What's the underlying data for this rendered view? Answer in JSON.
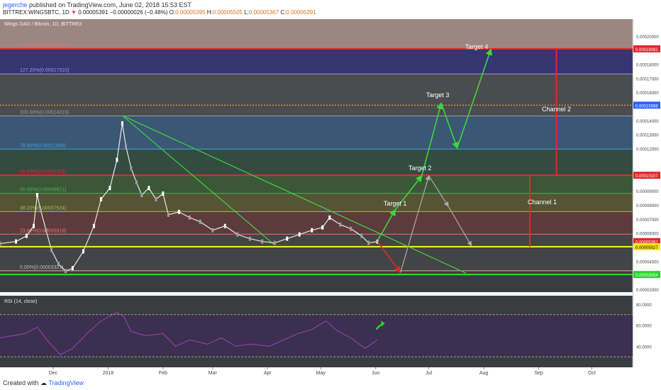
{
  "header": {
    "author": "jegerche",
    "published": "published on TradingView.com, June 02, 2018 15:53 EST",
    "symbol_line": "BITTREX:WINGSBTC, 1D",
    "last": "0.00005391",
    "change": "−0.00000026 (−0.48%)",
    "ohlc": [
      {
        "label": "O:",
        "value": "0.00005395"
      },
      {
        "label": "H:",
        "value": "0.00005505"
      },
      {
        "label": "L:",
        "value": "0.00005367"
      },
      {
        "label": "C:",
        "value": "0.00005391"
      }
    ]
  },
  "footer": {
    "created_with": "Created with",
    "brand": "TradingView"
  },
  "chart_data": {
    "type": "line",
    "title": "Wings DAO / Bitcoin, 1D, BITTREX",
    "price_axis": {
      "ylim": [
        1.8e-05,
        0.000212
      ],
      "ticks": [
        "0.00020000",
        "0.00018000",
        "0.00017000",
        "0.00016000",
        "0.00014000",
        "0.00013000",
        "0.00012000",
        "0.00009000",
        "0.00008000",
        "0.00007000",
        "0.00006000",
        "0.00004000",
        "0.00002000"
      ],
      "tick_values": [
        0.0002,
        0.00018,
        0.00017,
        0.00016,
        0.00014,
        0.00013,
        0.00012,
        9e-05,
        8e-05,
        7e-05,
        6e-05,
        4e-05,
        2e-05
      ]
    },
    "price_labels": [
      {
        "text": "0.00019091",
        "value": 0.00019091,
        "color": "#e3262c"
      },
      {
        "text": "0.00015088",
        "value": 0.00015088,
        "color": "#2962ff"
      },
      {
        "text": "0.00010107",
        "value": 0.00010107,
        "color": "#e3262c"
      },
      {
        "text": "0.00005391",
        "value": 5.391e-05,
        "color": "#e3262c"
      },
      {
        "text": "0.00005027",
        "value": 5.027e-05,
        "color": "#f7e71c"
      },
      {
        "text": "0.00003054",
        "value": 3.054e-05,
        "color": "#2ed12e"
      }
    ],
    "fib_levels": [
      {
        "label": "141.40%(0.00019091)",
        "value": 0.00019091,
        "color": "#e57373",
        "fill": "#efc3b8"
      },
      {
        "label": "127.20%(0.00017310)",
        "value": 0.0001731,
        "color": "#9a9ad8",
        "fill": "#2f2f9a"
      },
      {
        "label": "100.00%(0.00014319)",
        "value": 0.00014319,
        "color": "#9e9e9e",
        "fill": "#5a5a5a"
      },
      {
        "label": "78.60%(0.00011966)",
        "value": 0.00011966,
        "color": "#4aa0d8",
        "fill": "#3b6ea0"
      },
      {
        "label": "61.80%(0.00010119)",
        "value": 0.00010119,
        "color": "#e3262c",
        "fill": "#2e5a45"
      },
      {
        "label": "50.00%(0.00008821)",
        "value": 8.821e-05,
        "color": "#4caf50",
        "fill": "#3d6e33"
      },
      {
        "label": "38.20%(0.00007524)",
        "value": 7.524e-05,
        "color": "#a0c040",
        "fill": "#6c6a30"
      },
      {
        "label": "23.60%(0.00005918)",
        "value": 5.918e-05,
        "color": "#e57373",
        "fill": "#7a3a3a"
      },
      {
        "label": "0.00%(0.00003321)",
        "value": 3.321e-05,
        "color": "#bdbdbd",
        "fill": "#4a4a4a"
      }
    ],
    "horizontal_lines": [
      {
        "value": 0.00019091,
        "color": "#e3262c"
      },
      {
        "value": 0.00015088,
        "color": "#ffb74d"
      },
      {
        "value": 0.00010107,
        "color": "#e3262c"
      },
      {
        "value": 5.027e-05,
        "color": "#f7e71c"
      },
      {
        "value": 3.054e-05,
        "color": "#2ed12e"
      }
    ],
    "x_axis": {
      "ticks": [
        {
          "label": "Dec",
          "x": "2017-12-01"
        },
        {
          "label": "2018",
          "x": "2018-01-01"
        },
        {
          "label": "Feb",
          "x": "2018-02-01"
        },
        {
          "label": "Mar",
          "x": "2018-03-01"
        },
        {
          "label": "Apr",
          "x": "2018-04-01"
        },
        {
          "label": "May",
          "x": "2018-05-01"
        },
        {
          "label": "Jun",
          "x": "2018-06-01"
        },
        {
          "label": "Jul",
          "x": "2018-07-01"
        },
        {
          "label": "Aug",
          "x": "2018-08-01"
        },
        {
          "label": "Sep",
          "x": "2018-09-01"
        },
        {
          "label": "Oct",
          "x": "2018-10-01"
        }
      ],
      "xlim": [
        "2017-11-01",
        "2018-10-24"
      ]
    },
    "series": [
      {
        "color": "#ffffff",
        "points": [
          [
            "2017-11-01",
            5.25e-05
          ],
          [
            "2017-11-10",
            5.4e-05
          ],
          [
            "2017-11-16",
            5.8e-05
          ],
          [
            "2017-11-20",
            6.5e-05
          ],
          [
            "2017-11-22",
            8.7e-05
          ],
          [
            "2017-11-24",
            7.6e-05
          ],
          [
            "2017-11-27",
            6.2e-05
          ],
          [
            "2017-11-30",
            4.8e-05
          ],
          [
            "2017-12-04",
            3.8e-05
          ],
          [
            "2017-12-08",
            3.3e-05
          ],
          [
            "2017-12-12",
            3.5e-05
          ],
          [
            "2017-12-18",
            4.7e-05
          ],
          [
            "2017-12-24",
            6.5e-05
          ],
          [
            "2017-12-28",
            8.4e-05
          ],
          [
            "2018-01-02",
            9.2e-05
          ],
          [
            "2018-01-06",
            0.000112
          ],
          [
            "2018-01-09",
            0.000138
          ],
          [
            "2018-01-11",
            0.000122
          ],
          [
            "2018-01-14",
            0.000106
          ],
          [
            "2018-01-17",
            9.6e-05
          ],
          [
            "2018-01-20",
            8.7e-05
          ],
          [
            "2018-01-24",
            9.2e-05
          ],
          [
            "2018-01-28",
            8.4e-05
          ],
          [
            "2018-02-01",
            8.8e-05
          ],
          [
            "2018-02-04",
            7.3e-05
          ],
          [
            "2018-02-10",
            7.5e-05
          ],
          [
            "2018-02-16",
            7.1e-05
          ],
          [
            "2018-02-22",
            6.8e-05
          ],
          [
            "2018-03-01",
            6.2e-05
          ],
          [
            "2018-03-08",
            6.5e-05
          ],
          [
            "2018-03-15",
            5.9e-05
          ],
          [
            "2018-03-22",
            5.6e-05
          ],
          [
            "2018-03-29",
            5.4e-05
          ],
          [
            "2018-04-05",
            5.3e-05
          ],
          [
            "2018-04-12",
            5.6e-05
          ],
          [
            "2018-04-19",
            5.9e-05
          ],
          [
            "2018-04-26",
            6.2e-05
          ],
          [
            "2018-05-02",
            6.4e-05
          ],
          [
            "2018-05-06",
            7.1e-05
          ],
          [
            "2018-05-12",
            6.6e-05
          ],
          [
            "2018-05-18",
            6.3e-05
          ],
          [
            "2018-05-24",
            5.8e-05
          ],
          [
            "2018-05-28",
            5.3e-05
          ],
          [
            "2018-06-02",
            5.39e-05
          ]
        ]
      }
    ],
    "trendlines": [
      {
        "from": [
          "2018-01-09",
          0.0001435
        ],
        "to": [
          "2018-04-05",
          5.15e-05
        ],
        "color": "#3cd63c"
      },
      {
        "from": [
          "2018-01-09",
          0.0001435
        ],
        "to": [
          "2018-07-22",
          3.15e-05
        ],
        "color": "#3cd63c"
      }
    ],
    "projection_bull": {
      "color": "#3cd63c",
      "points": [
        [
          "2018-06-02",
          5.45e-05
        ],
        [
          "2018-06-12",
          7.65e-05
        ],
        [
          "2018-06-27",
          0.0001007
        ],
        [
          "2018-07-08",
          0.00015225
        ],
        [
          "2018-07-17",
          0.0001204
        ],
        [
          "2018-08-05",
          0.0001905
        ]
      ]
    },
    "projection_bear": {
      "red_color": "#e3262c",
      "grey_color": "#b0a8a8",
      "red_points": [
        [
          "2018-06-02",
          5.4e-05
        ],
        [
          "2018-06-15",
          3.2e-05
        ]
      ],
      "grey_points": [
        [
          "2018-06-15",
          3.2e-05
        ],
        [
          "2018-07-01",
          0.0001007
        ],
        [
          "2018-07-12",
          7.9e-05
        ],
        [
          "2018-07-25",
          5.1e-05
        ]
      ]
    },
    "annotations": [
      {
        "text": "Target 1",
        "x": "2018-06-12",
        "y": 7.95e-05
      },
      {
        "text": "Target 2",
        "x": "2018-06-26",
        "y": 0.0001047
      },
      {
        "text": "Target 3",
        "x": "2018-07-06",
        "y": 0.0001565
      },
      {
        "text": "Target 4",
        "x": "2018-07-28",
        "y": 0.0001908
      },
      {
        "text": "Channel 1",
        "x": "2018-09-03",
        "y": 8.05e-05
      },
      {
        "text": "Channel 2",
        "x": "2018-09-11",
        "y": 0.0001465
      }
    ],
    "channels": [
      {
        "x": "2018-08-27",
        "from": 5.027e-05,
        "to": 0.00010107,
        "color": "#e3262c"
      },
      {
        "x": "2018-09-11",
        "from": 0.00010107,
        "to": 0.00019091,
        "color": "#e3262c"
      }
    ],
    "rsi": {
      "title": "RSI (14, close)",
      "ylim": [
        20,
        88
      ],
      "ticks": [
        {
          "text": "80.0000",
          "value": 80
        },
        {
          "text": "60.0000",
          "value": 60
        },
        {
          "text": "40.0000",
          "value": 40
        }
      ],
      "band": [
        30,
        70
      ],
      "color": "#8e44ad",
      "points": [
        [
          "2017-11-01",
          48
        ],
        [
          "2017-11-15",
          52
        ],
        [
          "2017-11-22",
          58
        ],
        [
          "2017-11-28",
          45
        ],
        [
          "2017-12-05",
          32
        ],
        [
          "2017-12-12",
          38
        ],
        [
          "2017-12-20",
          52
        ],
        [
          "2017-12-28",
          64
        ],
        [
          "2018-01-06",
          72
        ],
        [
          "2018-01-10",
          68
        ],
        [
          "2018-01-14",
          54
        ],
        [
          "2018-01-22",
          50
        ],
        [
          "2018-02-01",
          52
        ],
        [
          "2018-02-08",
          40
        ],
        [
          "2018-02-16",
          46
        ],
        [
          "2018-02-26",
          42
        ],
        [
          "2018-03-06",
          48
        ],
        [
          "2018-03-14",
          40
        ],
        [
          "2018-03-22",
          42
        ],
        [
          "2018-04-02",
          40
        ],
        [
          "2018-04-10",
          46
        ],
        [
          "2018-04-18",
          52
        ],
        [
          "2018-04-26",
          56
        ],
        [
          "2018-05-04",
          64
        ],
        [
          "2018-05-10",
          55
        ],
        [
          "2018-05-18",
          48
        ],
        [
          "2018-05-26",
          38
        ],
        [
          "2018-06-02",
          46
        ]
      ],
      "arrow": {
        "x": "2018-06-03",
        "y": 60,
        "color": "#2ed12e"
      }
    }
  }
}
